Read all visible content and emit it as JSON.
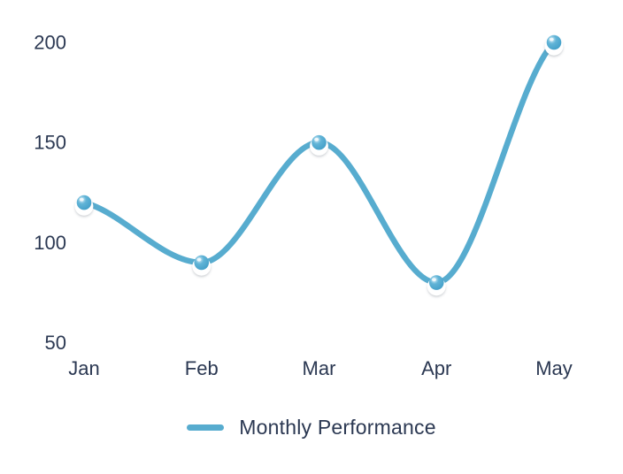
{
  "chart_data": {
    "type": "line",
    "categories": [
      "Jan",
      "Feb",
      "Mar",
      "Apr",
      "May"
    ],
    "series": [
      {
        "name": "Monthly Performance",
        "values": [
          120,
          90,
          150,
          80,
          200
        ]
      }
    ],
    "yticks": [
      200,
      150,
      100,
      50
    ],
    "ylim": [
      50,
      200
    ],
    "grid": false,
    "legend_position": "bottom-center",
    "marker_style": "glossy-sphere-on-white-halo",
    "colors": {
      "line": "#57ACCF",
      "text": "#2B3852",
      "background": "#FFFFFF",
      "marker_sphere_light": "#D8EFF8",
      "marker_sphere_mid": "#61B4D7",
      "marker_sphere_dark": "#3D9BC5",
      "marker_halo": "#FFFFFF"
    }
  },
  "legend": {
    "label": "Monthly Performance"
  }
}
